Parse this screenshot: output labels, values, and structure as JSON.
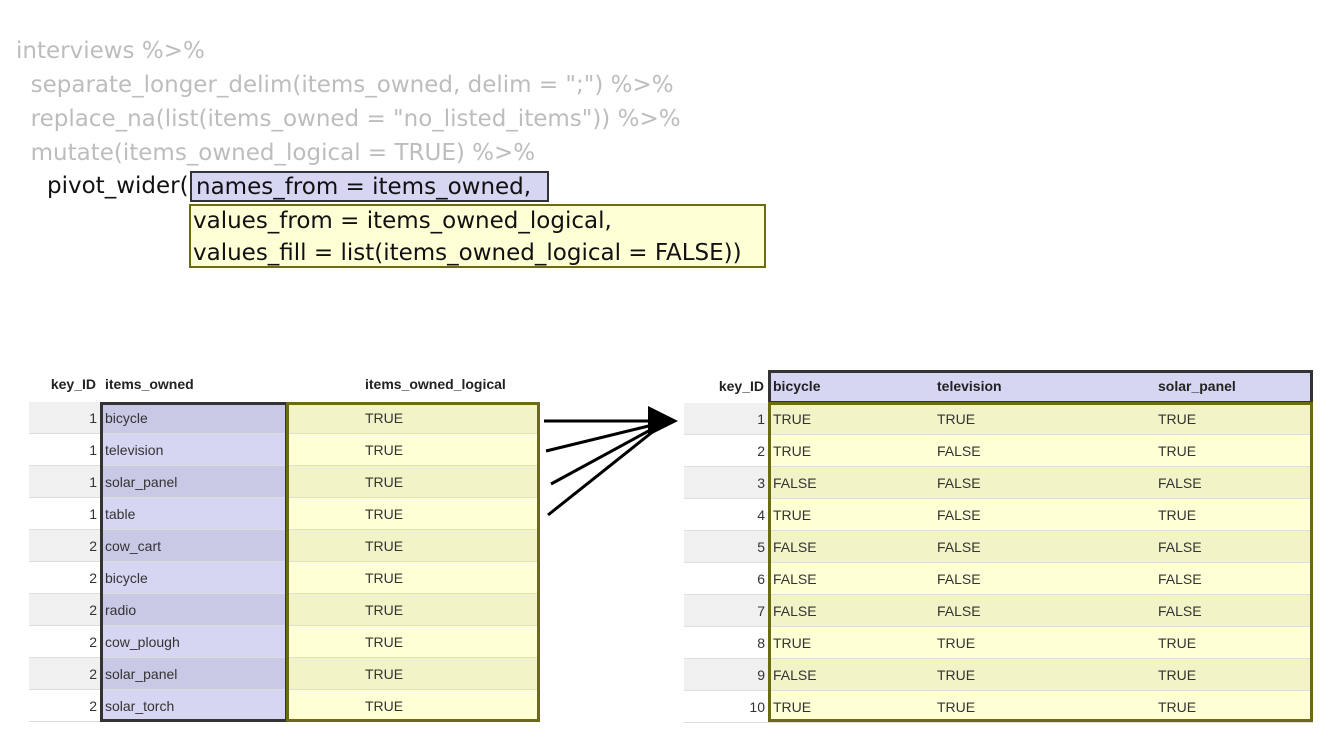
{
  "code": {
    "lines": [
      "interviews %>%",
      "  separate_longer_delim(items_owned, delim = \";\") %>%",
      "  replace_na(list(items_owned = \"no_listed_items\")) %>%",
      "  mutate(items_owned_logical = TRUE) %>%"
    ],
    "pivot_prefix": "pivot_wider(",
    "names_from": "names_from = items_owned,",
    "values_from": "values_from = items_owned_logical,",
    "values_fill": "values_fill = list(items_owned_logical = FALSE))"
  },
  "long_table": {
    "headers": [
      "key_ID",
      "items_owned",
      "items_owned_logical"
    ],
    "rows": [
      [
        "1",
        "bicycle",
        "TRUE"
      ],
      [
        "1",
        "television",
        "TRUE"
      ],
      [
        "1",
        "solar_panel",
        "TRUE"
      ],
      [
        "1",
        "table",
        "TRUE"
      ],
      [
        "2",
        "cow_cart",
        "TRUE"
      ],
      [
        "2",
        "bicycle",
        "TRUE"
      ],
      [
        "2",
        "radio",
        "TRUE"
      ],
      [
        "2",
        "cow_plough",
        "TRUE"
      ],
      [
        "2",
        "solar_panel",
        "TRUE"
      ],
      [
        "2",
        "solar_torch",
        "TRUE"
      ]
    ]
  },
  "wide_table": {
    "headers": [
      "key_ID",
      "bicycle",
      "television",
      "solar_panel"
    ],
    "rows": [
      [
        "1",
        "TRUE",
        "TRUE",
        "TRUE"
      ],
      [
        "2",
        "TRUE",
        "FALSE",
        "TRUE"
      ],
      [
        "3",
        "FALSE",
        "FALSE",
        "FALSE"
      ],
      [
        "4",
        "TRUE",
        "FALSE",
        "TRUE"
      ],
      [
        "5",
        "FALSE",
        "FALSE",
        "FALSE"
      ],
      [
        "6",
        "FALSE",
        "FALSE",
        "FALSE"
      ],
      [
        "7",
        "FALSE",
        "FALSE",
        "FALSE"
      ],
      [
        "8",
        "TRUE",
        "TRUE",
        "TRUE"
      ],
      [
        "9",
        "FALSE",
        "TRUE",
        "TRUE"
      ],
      [
        "10",
        "TRUE",
        "TRUE",
        "TRUE"
      ]
    ]
  },
  "colors": {
    "names_fill": "#d6d6f2",
    "values_fill": "#ffffd6",
    "names_border": "#333333",
    "values_border": "#6b6b12",
    "code_gray": "#bdbdbd"
  }
}
